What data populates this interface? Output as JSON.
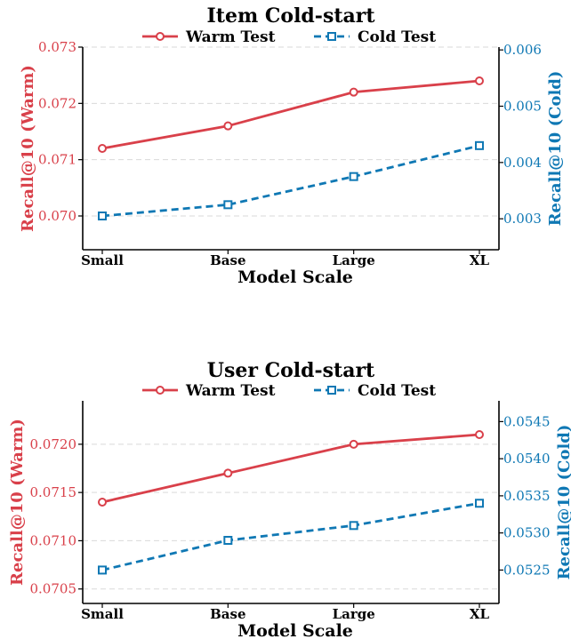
{
  "colors": {
    "warm": "#d9404a",
    "cold": "#0f78b4"
  },
  "chart_data": [
    {
      "type": "line",
      "title": "Item Cold-start",
      "xlabel": "Model Scale",
      "categories": [
        "Small",
        "Base",
        "Large",
        "XL"
      ],
      "legend": {
        "placement": "top-center",
        "warm_label": "Warm Test",
        "cold_label": "Cold Test"
      },
      "left_axis": {
        "label": "Recall@10 (Warm)",
        "ylim": [
          0.0694,
          0.073
        ],
        "ticks": [
          0.07,
          0.071,
          0.072,
          0.073
        ],
        "tick_labels": [
          "0.070",
          "0.071",
          "0.072",
          "0.073"
        ]
      },
      "right_axis": {
        "label": "Recall@10 (Cold)",
        "ylim": [
          0.00245,
          0.00605
        ],
        "ticks": [
          0.003,
          0.004,
          0.005,
          0.006
        ],
        "tick_labels": [
          "0.003",
          "0.004",
          "0.005",
          "0.006"
        ]
      },
      "series": [
        {
          "name": "Warm Test",
          "axis": "left",
          "values": [
            0.0712,
            0.0716,
            0.0722,
            0.0724
          ]
        },
        {
          "name": "Cold Test",
          "axis": "right",
          "values": [
            0.00305,
            0.00325,
            0.00375,
            0.0043
          ]
        }
      ],
      "grid": true
    },
    {
      "type": "line",
      "title": "User Cold-start",
      "xlabel": "Model Scale",
      "categories": [
        "Small",
        "Base",
        "Large",
        "XL"
      ],
      "legend": {
        "placement": "top-center",
        "warm_label": "Warm Test",
        "cold_label": "Cold Test"
      },
      "left_axis": {
        "label": "Recall@10 (Warm)",
        "ylim": [
          0.07035,
          0.07245
        ],
        "ticks": [
          0.0705,
          0.071,
          0.0715,
          0.072
        ],
        "tick_labels": [
          "0.0705",
          "0.0710",
          "0.0715",
          "0.0720"
        ]
      },
      "right_axis": {
        "label": "Recall@10 (Cold)",
        "ylim": [
          0.05205,
          0.05478
        ],
        "ticks": [
          0.0525,
          0.053,
          0.0535,
          0.054,
          0.0545
        ],
        "tick_labels": [
          "0.0525",
          "0.0530",
          "0.0535",
          "0.0540",
          "0.0545"
        ]
      },
      "series": [
        {
          "name": "Warm Test",
          "axis": "left",
          "values": [
            0.0714,
            0.0717,
            0.072,
            0.0721
          ]
        },
        {
          "name": "Cold Test",
          "axis": "right",
          "values": [
            0.0525,
            0.0529,
            0.0531,
            0.0534
          ]
        }
      ],
      "grid": true
    }
  ]
}
